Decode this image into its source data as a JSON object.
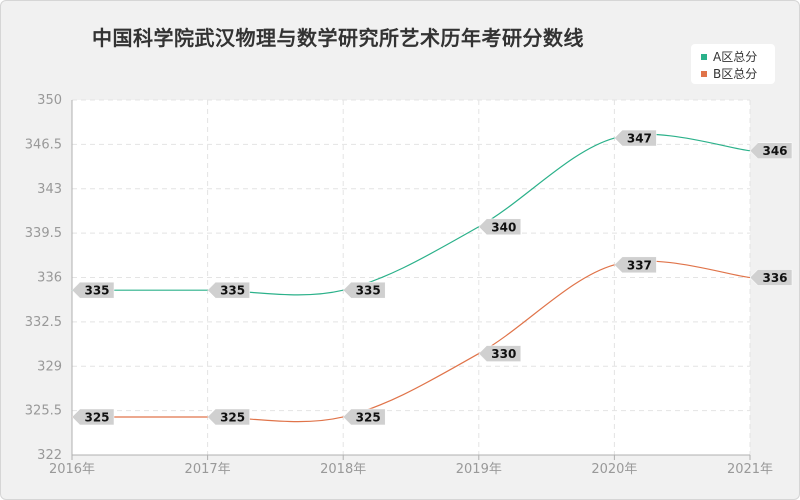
{
  "title": "中国科学院武汉物理与数学研究所艺术历年考研分数线",
  "chart_data": {
    "type": "line",
    "title": "中国科学院武汉物理与数学研究所艺术历年考研分数线",
    "categories": [
      "2016年",
      "2017年",
      "2018年",
      "2019年",
      "2020年",
      "2021年"
    ],
    "y_ticks": [
      "322",
      "325.5",
      "329",
      "332.5",
      "336",
      "339.5",
      "343",
      "346.5",
      "350"
    ],
    "ylim": [
      322,
      350
    ],
    "grid": true,
    "legend_position": "top-right",
    "series": [
      {
        "name": "A区总分",
        "color": "#2bb18a",
        "values": [
          335,
          335,
          335,
          340,
          347,
          346
        ]
      },
      {
        "name": "B区总分",
        "color": "#e0744a",
        "values": [
          325,
          325,
          325,
          330,
          337,
          336
        ]
      }
    ]
  }
}
